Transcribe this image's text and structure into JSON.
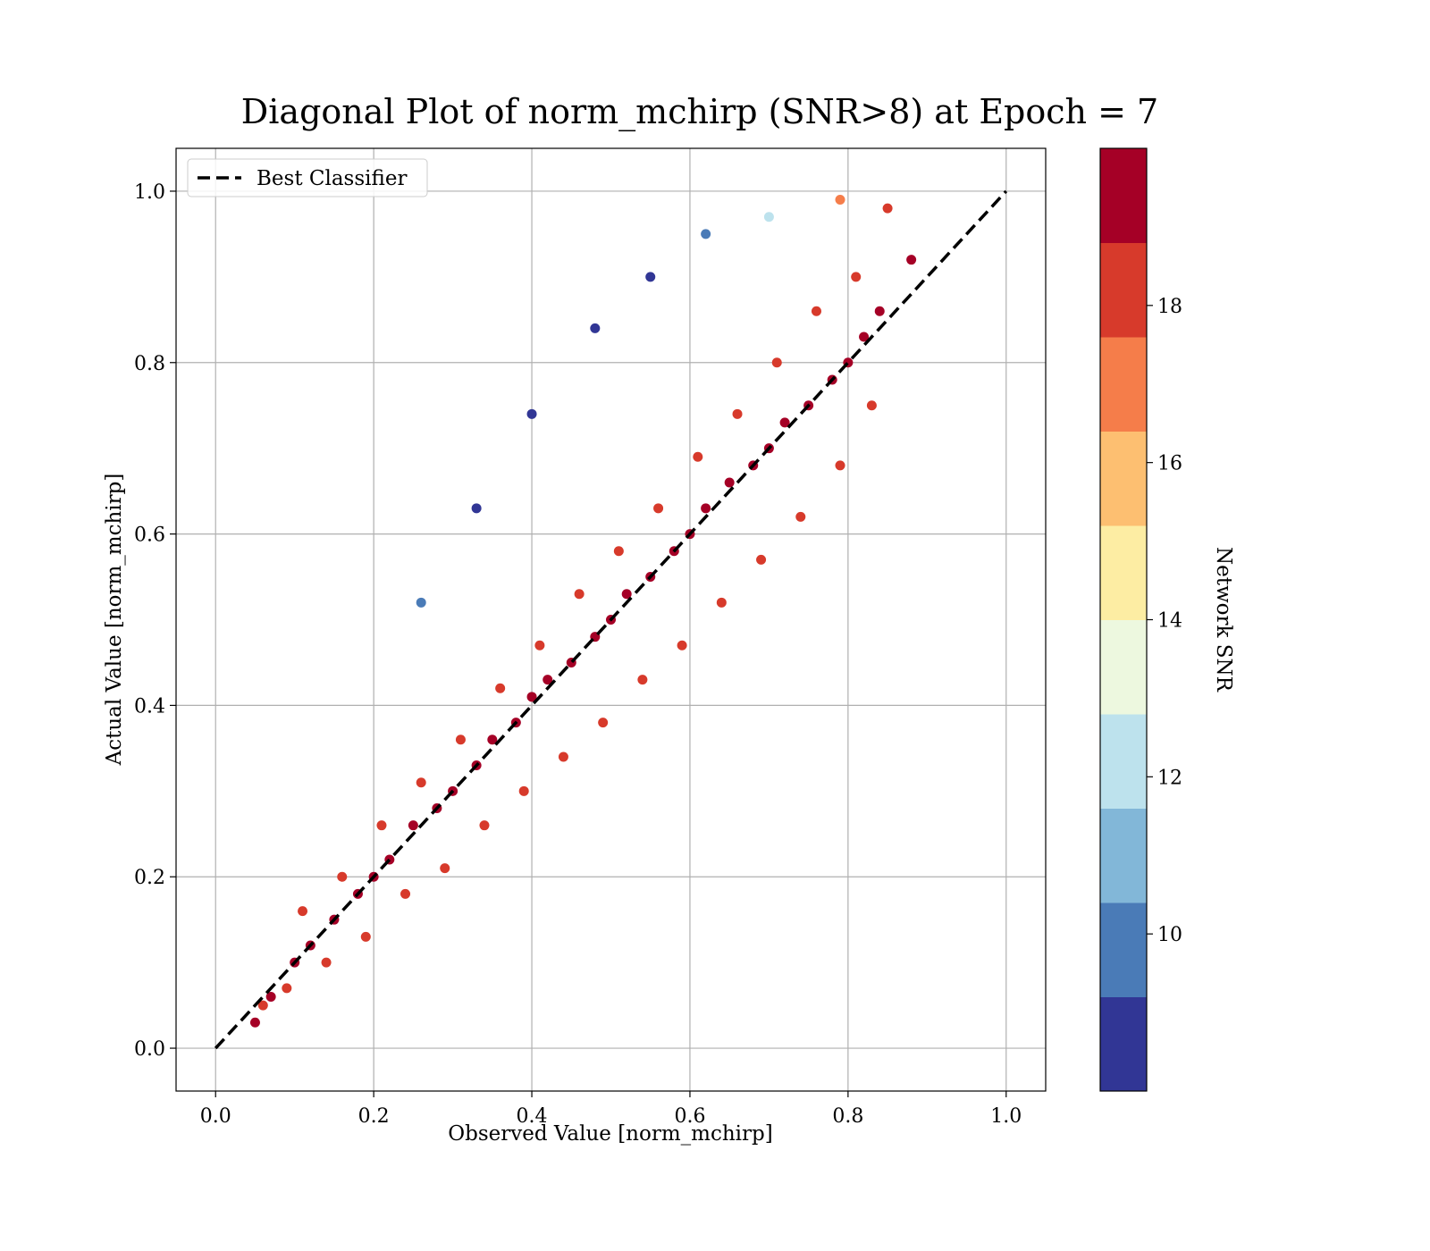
{
  "chart_data": {
    "type": "scatter",
    "title": "Diagonal Plot of norm_mchirp (SNR>8) at Epoch = 7",
    "xlabel": "Observed Value [norm_mchirp]",
    "ylabel": "Actual Value [norm_mchirp]",
    "xlim": [
      -0.05,
      1.05
    ],
    "ylim": [
      -0.05,
      1.05
    ],
    "xticks": [
      "0.0",
      "0.2",
      "0.4",
      "0.6",
      "0.8",
      "1.0"
    ],
    "yticks": [
      "0.0",
      "0.2",
      "0.4",
      "0.6",
      "0.8",
      "1.0"
    ],
    "grid": true,
    "legend": {
      "placement": "top-left",
      "entries": [
        "Best Classifier"
      ]
    },
    "reference_line": {
      "name": "Best Classifier",
      "x": [
        0.0,
        1.0
      ],
      "y": [
        0.0,
        1.0
      ],
      "style": "dashed",
      "color": "#000000"
    },
    "colorbar": {
      "label": "Network SNR",
      "range": [
        8,
        20
      ],
      "tick_labels": [
        "10",
        "12",
        "14",
        "16",
        "18"
      ],
      "bins": [
        {
          "from": 8,
          "to": 9.2,
          "color": "#313695"
        },
        {
          "from": 9.2,
          "to": 10.4,
          "color": "#4a7bb7"
        },
        {
          "from": 10.4,
          "to": 11.6,
          "color": "#82b7d8"
        },
        {
          "from": 11.6,
          "to": 12.8,
          "color": "#bde2ed"
        },
        {
          "from": 12.8,
          "to": 14.0,
          "color": "#edf8df"
        },
        {
          "from": 14.0,
          "to": 15.2,
          "color": "#fdeda3"
        },
        {
          "from": 15.2,
          "to": 16.4,
          "color": "#fdbf71"
        },
        {
          "from": 16.4,
          "to": 17.6,
          "color": "#f57d4a"
        },
        {
          "from": 17.6,
          "to": 18.8,
          "color": "#d73a2b"
        },
        {
          "from": 18.8,
          "to": 20.0,
          "color": "#a50026"
        }
      ]
    },
    "series": [
      {
        "x": [
          0.05,
          0.07,
          0.1,
          0.12,
          0.15,
          0.18,
          0.2,
          0.22,
          0.25,
          0.28,
          0.3,
          0.33,
          0.35,
          0.38,
          0.4,
          0.42,
          0.45,
          0.48,
          0.5,
          0.52,
          0.55,
          0.58,
          0.6,
          0.62,
          0.65,
          0.68,
          0.7,
          0.72,
          0.75,
          0.78,
          0.8,
          0.82,
          0.84,
          0.06,
          0.09,
          0.14,
          0.19,
          0.24,
          0.29,
          0.34,
          0.39,
          0.44,
          0.49,
          0.54,
          0.59,
          0.64,
          0.69,
          0.74,
          0.79,
          0.83,
          0.11,
          0.16,
          0.21,
          0.26,
          0.31,
          0.36,
          0.41,
          0.46,
          0.51,
          0.56,
          0.61,
          0.66,
          0.71,
          0.76,
          0.81,
          0.88,
          0.85,
          0.79,
          0.7,
          0.62,
          0.55,
          0.48,
          0.4,
          0.33,
          0.26
        ],
        "y": [
          0.03,
          0.06,
          0.1,
          0.12,
          0.15,
          0.18,
          0.2,
          0.22,
          0.26,
          0.28,
          0.3,
          0.33,
          0.36,
          0.38,
          0.41,
          0.43,
          0.45,
          0.48,
          0.5,
          0.53,
          0.55,
          0.58,
          0.6,
          0.63,
          0.66,
          0.68,
          0.7,
          0.73,
          0.75,
          0.78,
          0.8,
          0.83,
          0.86,
          0.05,
          0.07,
          0.1,
          0.13,
          0.18,
          0.21,
          0.26,
          0.3,
          0.34,
          0.38,
          0.43,
          0.47,
          0.52,
          0.57,
          0.62,
          0.68,
          0.75,
          0.16,
          0.2,
          0.26,
          0.31,
          0.36,
          0.42,
          0.47,
          0.53,
          0.58,
          0.63,
          0.69,
          0.74,
          0.8,
          0.86,
          0.9,
          0.92,
          0.98,
          0.99,
          0.97,
          0.95,
          0.9,
          0.84,
          0.74,
          0.63,
          0.52
        ],
        "snr": [
          19,
          19,
          19,
          19,
          19,
          19,
          19,
          19,
          19,
          19,
          19,
          19,
          19,
          19,
          19,
          19,
          19,
          19,
          19,
          19,
          19,
          19,
          19,
          19,
          19,
          19,
          19,
          19,
          19,
          19,
          19,
          19,
          19,
          18,
          18,
          18,
          18,
          18,
          18,
          18,
          18,
          18,
          18,
          18,
          18,
          18,
          18,
          18,
          18,
          18,
          18,
          18,
          18,
          18,
          18,
          18,
          18,
          18,
          18,
          18,
          18,
          18,
          18,
          18,
          18,
          19,
          18,
          17,
          12,
          10,
          9,
          9,
          9,
          9,
          10
        ]
      }
    ]
  }
}
